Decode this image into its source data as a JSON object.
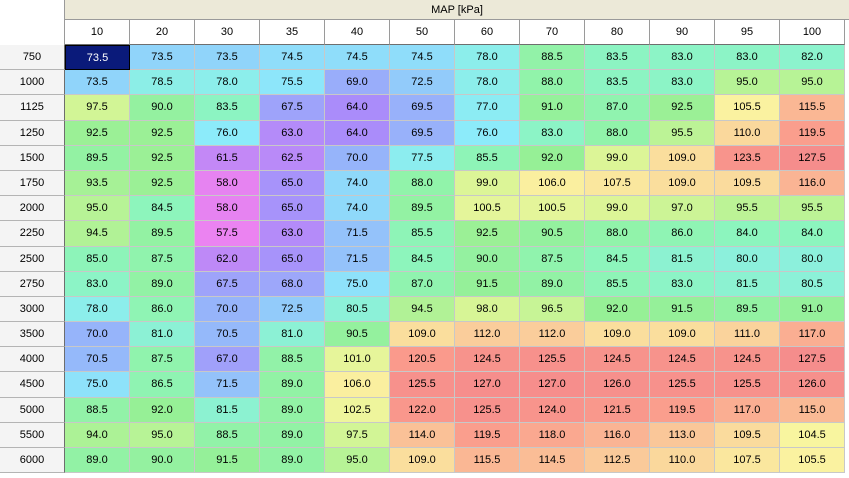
{
  "table": {
    "x_axis_title": "MAP [kPa]",
    "columns": [
      "10",
      "20",
      "30",
      "35",
      "40",
      "50",
      "60",
      "70",
      "80",
      "90",
      "95",
      "100"
    ],
    "rows": [
      "750",
      "1000",
      "1125",
      "1250",
      "1500",
      "1750",
      "2000",
      "2250",
      "2500",
      "2750",
      "3000",
      "3500",
      "4000",
      "4500",
      "5000",
      "5500",
      "6000"
    ],
    "values": [
      [
        "73.5",
        "73.5",
        "73.5",
        "74.5",
        "74.5",
        "74.5",
        "78.0",
        "88.5",
        "83.5",
        "83.0",
        "83.0",
        "82.0"
      ],
      [
        "73.5",
        "78.5",
        "78.0",
        "75.5",
        "69.0",
        "72.5",
        "78.0",
        "88.0",
        "83.5",
        "83.0",
        "95.0",
        "95.0"
      ],
      [
        "97.5",
        "90.0",
        "83.5",
        "67.5",
        "64.0",
        "69.5",
        "77.0",
        "91.0",
        "87.0",
        "92.5",
        "105.5",
        "115.5"
      ],
      [
        "92.5",
        "92.5",
        "76.0",
        "63.0",
        "64.0",
        "69.5",
        "76.0",
        "83.0",
        "88.0",
        "95.5",
        "110.0",
        "119.5"
      ],
      [
        "89.5",
        "92.5",
        "61.5",
        "62.5",
        "70.0",
        "77.5",
        "85.5",
        "92.0",
        "99.0",
        "109.0",
        "123.5",
        "127.5"
      ],
      [
        "93.5",
        "92.5",
        "58.0",
        "65.0",
        "74.0",
        "88.0",
        "99.0",
        "106.0",
        "107.5",
        "109.0",
        "109.5",
        "116.0"
      ],
      [
        "95.0",
        "84.5",
        "58.0",
        "65.0",
        "74.0",
        "89.5",
        "100.5",
        "100.5",
        "99.0",
        "97.0",
        "95.5",
        "95.5"
      ],
      [
        "94.5",
        "89.5",
        "57.5",
        "63.0",
        "71.5",
        "85.5",
        "92.5",
        "90.5",
        "88.0",
        "86.0",
        "84.0",
        "84.0"
      ],
      [
        "85.0",
        "87.5",
        "62.0",
        "65.0",
        "71.5",
        "84.5",
        "90.0",
        "87.5",
        "84.5",
        "81.5",
        "80.0",
        "80.0"
      ],
      [
        "83.0",
        "89.0",
        "67.5",
        "68.0",
        "75.0",
        "87.0",
        "91.5",
        "89.0",
        "85.5",
        "83.0",
        "81.5",
        "80.5"
      ],
      [
        "78.0",
        "86.0",
        "70.0",
        "72.5",
        "80.5",
        "94.5",
        "98.0",
        "96.5",
        "92.0",
        "91.5",
        "89.5",
        "91.0"
      ],
      [
        "70.0",
        "81.0",
        "70.5",
        "81.0",
        "90.5",
        "109.0",
        "112.0",
        "112.0",
        "109.0",
        "109.0",
        "111.0",
        "117.0"
      ],
      [
        "70.5",
        "87.5",
        "67.0",
        "88.5",
        "101.0",
        "120.5",
        "124.5",
        "125.5",
        "124.5",
        "124.5",
        "124.5",
        "127.5"
      ],
      [
        "75.0",
        "86.5",
        "71.5",
        "89.0",
        "106.0",
        "125.5",
        "127.0",
        "127.0",
        "126.0",
        "125.5",
        "125.5",
        "126.0"
      ],
      [
        "88.5",
        "92.0",
        "81.5",
        "89.0",
        "102.5",
        "122.0",
        "125.5",
        "124.0",
        "121.5",
        "119.5",
        "117.0",
        "115.0"
      ],
      [
        "94.0",
        "95.0",
        "88.5",
        "89.0",
        "97.5",
        "114.0",
        "119.5",
        "118.0",
        "116.0",
        "113.0",
        "109.5",
        "104.5"
      ],
      [
        "89.0",
        "90.0",
        "91.5",
        "89.0",
        "95.0",
        "109.0",
        "115.5",
        "114.5",
        "112.5",
        "110.0",
        "107.5",
        "105.5"
      ]
    ],
    "selected_cell": {
      "row": 0,
      "col": 0
    },
    "selected_color": "#0a1a7a"
  }
}
